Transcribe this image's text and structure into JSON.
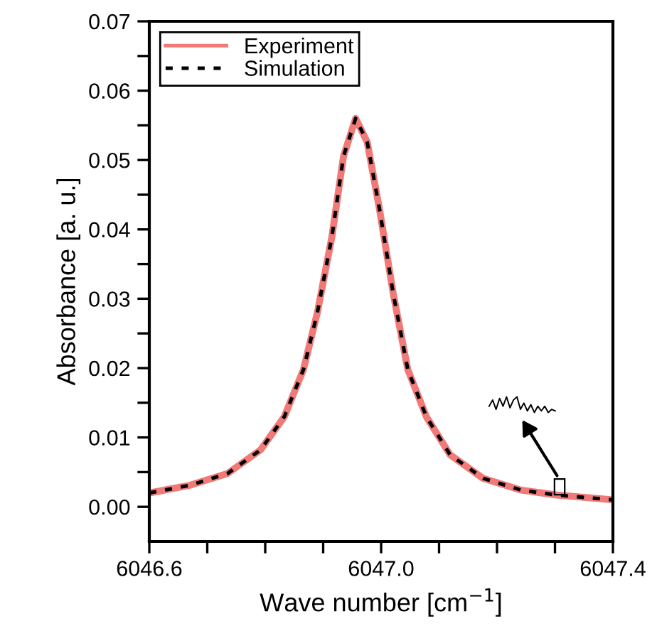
{
  "chart_data": {
    "type": "line",
    "xlabel": "Wave number [cm$^{−1}$]",
    "ylabel": "Absorbance [a. u.]",
    "x": [
      6046.6,
      6046.67,
      6046.735,
      6046.792,
      6046.833,
      6046.866,
      6046.89,
      6046.915,
      6046.935,
      6046.956,
      6046.976,
      6046.997,
      6047.021,
      6047.046,
      6047.078,
      6047.119,
      6047.176,
      6047.242,
      6047.303,
      6047.4
    ],
    "series": [
      {
        "name": "Experiment",
        "color": "#f07a78",
        "line_style": "solid",
        "values": [
          0.002,
          0.0031,
          0.0048,
          0.0082,
          0.013,
          0.0198,
          0.028,
          0.0389,
          0.0505,
          0.056,
          0.0526,
          0.043,
          0.0307,
          0.0198,
          0.013,
          0.0075,
          0.0041,
          0.0024,
          0.0017,
          0.001
        ]
      },
      {
        "name": "Simulation",
        "color": "#000000",
        "line_style": "dotted",
        "values": [
          0.002,
          0.0031,
          0.0048,
          0.0082,
          0.013,
          0.0198,
          0.028,
          0.0389,
          0.0505,
          0.056,
          0.0526,
          0.043,
          0.0307,
          0.0198,
          0.013,
          0.0075,
          0.0041,
          0.0024,
          0.0017,
          0.001
        ]
      }
    ],
    "xlim": [
      6046.6,
      6047.4
    ],
    "xticks": [
      {
        "value": 6046.6,
        "label": "6046.6"
      },
      {
        "value": 6046.7,
        "label": null
      },
      {
        "value": 6046.8,
        "label": null
      },
      {
        "value": 6046.9,
        "label": null
      },
      {
        "value": 6047.0,
        "label": "6047.0"
      },
      {
        "value": 6047.1,
        "label": null
      },
      {
        "value": 6047.2,
        "label": null
      },
      {
        "value": 6047.3,
        "label": null
      },
      {
        "value": 6047.4,
        "label": "6047.4"
      }
    ],
    "ylim": [
      -0.005,
      0.07
    ],
    "yticks": [
      {
        "value": 0.0,
        "label": "0.00"
      },
      {
        "value": 0.005,
        "label": null
      },
      {
        "value": 0.01,
        "label": "0.01"
      },
      {
        "value": 0.015,
        "label": null
      },
      {
        "value": 0.02,
        "label": "0.02"
      },
      {
        "value": 0.025,
        "label": null
      },
      {
        "value": 0.03,
        "label": "0.03"
      },
      {
        "value": 0.035,
        "label": null
      },
      {
        "value": 0.04,
        "label": "0.04"
      },
      {
        "value": 0.045,
        "label": null
      },
      {
        "value": 0.05,
        "label": "0.05"
      },
      {
        "value": 0.055,
        "label": null
      },
      {
        "value": 0.06,
        "label": "0.06"
      },
      {
        "value": 0.065,
        "label": null
      },
      {
        "value": 0.07,
        "label": "0.07"
      }
    ],
    "grid": false,
    "legend": "top left"
  }
}
